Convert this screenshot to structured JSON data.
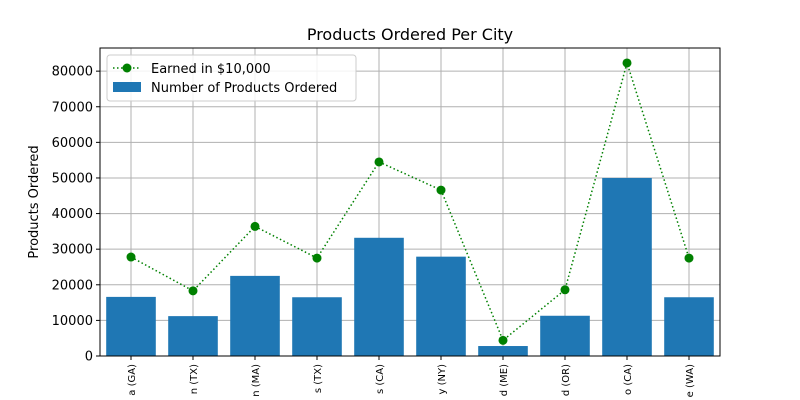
{
  "chart_data": {
    "type": "bar",
    "title": "Products Ordered Per City",
    "xlabel": "",
    "ylabel": "Products Ordered",
    "ylim": [
      0,
      86500
    ],
    "yticks": [
      0,
      10000,
      20000,
      30000,
      40000,
      50000,
      60000,
      70000,
      80000
    ],
    "categories": [
      "a (GA)",
      "n (TX)",
      "n (MA)",
      "s (TX)",
      "s (CA)",
      "y (NY)",
      "d (ME)",
      "d (OR)",
      "o (CA)",
      "e (WA)"
    ],
    "grid": true,
    "legend_position": "top-left",
    "series": [
      {
        "name": "Earned in $10,000",
        "kind": "line",
        "color": "#008000",
        "line_style": "dotted",
        "marker": "circle",
        "values": [
          27800,
          18300,
          36400,
          27500,
          54500,
          46600,
          4400,
          18600,
          82300,
          27500
        ]
      },
      {
        "name": "Number of Products Ordered",
        "kind": "bar",
        "color": "#1f77b4",
        "values": [
          16600,
          11200,
          22500,
          16500,
          33200,
          27900,
          2800,
          11300,
          50000,
          16500
        ]
      }
    ]
  }
}
